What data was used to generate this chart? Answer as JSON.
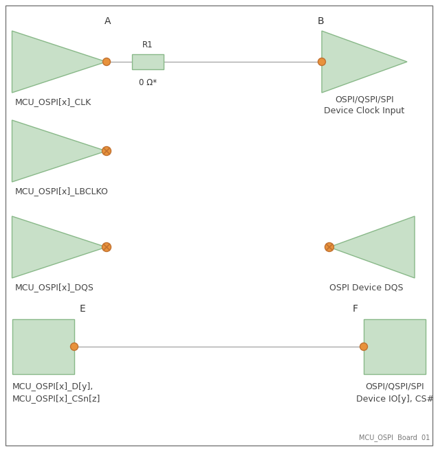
{
  "bg_color": "#ffffff",
  "border_color": "#555555",
  "triangle_fill": "#c8e0c8",
  "triangle_edge": "#88b888",
  "rect_fill": "#c8e0c8",
  "rect_edge": "#88b888",
  "resistor_fill": "#c8e0c8",
  "resistor_edge": "#88b888",
  "dot_color": "#e8923c",
  "dot_edge": "#c07030",
  "line_color": "#aaaaaa",
  "label_A": "A",
  "label_B": "B",
  "label_E": "E",
  "label_F": "F",
  "label_R1": "R1",
  "label_ohm": "0 Ω*",
  "text_clk": "MCU_OSPI[x]_CLK",
  "text_clk_dev": "OSPI/QSPI/SPI\nDevice Clock Input",
  "text_lbclko": "MCU_OSPI[x]_LBCLKO",
  "text_dqs_left": "MCU_OSPI[x]_DQS",
  "text_dqs_right": "OSPI Device DQS",
  "text_data_left": "MCU_OSPI[x]_D[y],\nMCU_OSPI[x]_CSn[z]",
  "text_data_right": "OSPI/QSPI/SPI\nDevice IO[y], CS#",
  "text_footer": "MCU_OSPI  Board  01",
  "figsize": [
    6.37,
    6.57
  ],
  "dpi": 100
}
